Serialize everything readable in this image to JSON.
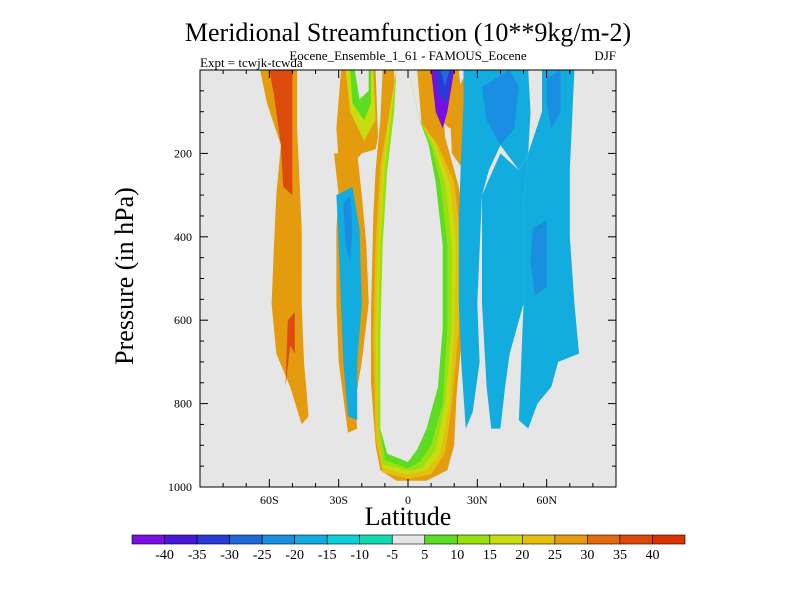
{
  "chart_data": {
    "type": "heatmap",
    "title": "Meridional Streamfunction (10**9kg/m-2)",
    "subtitle": "Eocene_Ensemble_1_61 - FAMOUS_Eocene",
    "expt_label": "Expt = tcwjk-tcwda",
    "season": "DJF",
    "xlabel": "Latitude",
    "ylabel": "Pressure (in hPa)",
    "xlim": [
      -90,
      90
    ],
    "ylim": [
      1000,
      0
    ],
    "x_ticks": [
      {
        "value": -60,
        "label": "60S"
      },
      {
        "value": -30,
        "label": "30S"
      },
      {
        "value": 0,
        "label": "0"
      },
      {
        "value": 30,
        "label": "30N"
      },
      {
        "value": 60,
        "label": "60N"
      }
    ],
    "y_ticks": [
      {
        "value": 200,
        "label": "200"
      },
      {
        "value": 400,
        "label": "400"
      },
      {
        "value": 600,
        "label": "600"
      },
      {
        "value": 800,
        "label": "800"
      },
      {
        "value": 1000,
        "label": "1000"
      }
    ],
    "background_color": "#e6e6e6",
    "colorbar": {
      "labels": [
        "-40",
        "-35",
        "-30",
        "-25",
        "-20",
        "-15",
        "-10",
        "-5",
        "5",
        "10",
        "15",
        "20",
        "25",
        "30",
        "35",
        "40"
      ],
      "colors": [
        "#7a0de0",
        "#4a16d8",
        "#2a3ad8",
        "#1f6ad8",
        "#1a8ee0",
        "#12acde",
        "#0ccfd8",
        "#10dcb0",
        "#e6e6e6",
        "#5cdc22",
        "#98e010",
        "#c8dc10",
        "#e4c00e",
        "#e49c0e",
        "#e06a0c",
        "#dc4a0c",
        "#dc3200"
      ]
    },
    "regions": [
      {
        "level": 5,
        "points": [
          [
            0,
            920
          ],
          [
            6,
            880
          ],
          [
            9,
            820
          ],
          [
            11,
            700
          ],
          [
            12,
            560
          ],
          [
            11,
            400
          ],
          [
            9,
            260
          ],
          [
            6,
            140
          ],
          [
            4,
            0
          ],
          [
            14,
            0
          ],
          [
            16,
            160
          ],
          [
            22,
            280
          ],
          [
            25,
            420
          ],
          [
            24,
            600
          ],
          [
            21,
            780
          ],
          [
            20,
            900
          ],
          [
            17,
            960
          ],
          [
            8,
            985
          ],
          [
            -5,
            985
          ],
          [
            -12,
            960
          ],
          [
            -14,
            900
          ],
          [
            -16,
            750
          ],
          [
            -16,
            580
          ],
          [
            -15,
            350
          ],
          [
            -14,
            240
          ],
          [
            -12,
            120
          ],
          [
            -11,
            0
          ],
          [
            -6,
            0
          ],
          [
            -5,
            160
          ],
          [
            -4,
            340
          ],
          [
            -3,
            560
          ],
          [
            -3,
            760
          ],
          [
            -2,
            880
          ]
        ]
      },
      {
        "level": 4,
        "points": [
          [
            -5,
            0
          ],
          [
            0,
            0
          ],
          [
            5,
            120
          ],
          [
            13,
            180
          ],
          [
            20,
            270
          ],
          [
            23,
            420
          ],
          [
            22,
            620
          ],
          [
            19,
            800
          ],
          [
            16,
            920
          ],
          [
            10,
            970
          ],
          [
            0,
            980
          ],
          [
            -11,
            965
          ],
          [
            -14,
            880
          ],
          [
            -15,
            640
          ],
          [
            -14,
            420
          ],
          [
            -12,
            230
          ],
          [
            -8,
            100
          ]
        ]
      },
      {
        "level": 3,
        "points": [
          [
            -5,
            0
          ],
          [
            0,
            0
          ],
          [
            5,
            120
          ],
          [
            12,
            180
          ],
          [
            18,
            270
          ],
          [
            21,
            420
          ],
          [
            20,
            620
          ],
          [
            18,
            800
          ],
          [
            14,
            920
          ],
          [
            8,
            960
          ],
          [
            0,
            970
          ],
          [
            -11,
            955
          ],
          [
            -13,
            860
          ],
          [
            -14,
            640
          ],
          [
            -13,
            420
          ],
          [
            -11,
            230
          ],
          [
            -8,
            100
          ]
        ]
      },
      {
        "level": 2,
        "points": [
          [
            -5,
            0
          ],
          [
            0,
            0
          ],
          [
            5,
            120
          ],
          [
            11,
            180
          ],
          [
            16,
            270
          ],
          [
            19,
            420
          ],
          [
            19,
            620
          ],
          [
            16,
            800
          ],
          [
            12,
            910
          ],
          [
            6,
            955
          ],
          [
            0,
            960
          ],
          [
            -11,
            945
          ],
          [
            -13,
            860
          ],
          [
            -13,
            640
          ],
          [
            -12,
            420
          ],
          [
            -10,
            230
          ],
          [
            -7,
            100
          ]
        ]
      },
      {
        "level": 1,
        "points": [
          [
            -5,
            0
          ],
          [
            0,
            0
          ],
          [
            5,
            120
          ],
          [
            10,
            180
          ],
          [
            14,
            270
          ],
          [
            17,
            420
          ],
          [
            17,
            620
          ],
          [
            15,
            800
          ],
          [
            10,
            900
          ],
          [
            5,
            940
          ],
          [
            0,
            955
          ],
          [
            -10,
            935
          ],
          [
            -12,
            860
          ],
          [
            -12,
            640
          ],
          [
            -11,
            420
          ],
          [
            -9,
            230
          ],
          [
            -6,
            100
          ]
        ]
      },
      {
        "level": 0,
        "points": [
          [
            -5,
            0
          ],
          [
            0,
            0
          ],
          [
            5,
            120
          ],
          [
            9,
            180
          ],
          [
            12,
            270
          ],
          [
            15,
            420
          ],
          [
            15,
            620
          ],
          [
            13,
            760
          ],
          [
            8,
            860
          ],
          [
            4,
            910
          ],
          [
            0,
            940
          ],
          [
            -9,
            920
          ],
          [
            -12,
            860
          ],
          [
            -12,
            640
          ],
          [
            -11,
            420
          ],
          [
            -9,
            240
          ],
          [
            -6,
            100
          ]
        ]
      },
      {
        "level": 5,
        "points": [
          [
            -29,
            0
          ],
          [
            -14,
            0
          ],
          [
            -13,
            160
          ],
          [
            -14,
            190
          ],
          [
            -20,
            200
          ],
          [
            -23,
            220
          ],
          [
            -24,
            240
          ],
          [
            -30,
            220
          ],
          [
            -31,
            140
          ]
        ]
      },
      {
        "level": 3,
        "points": [
          [
            -27,
            0
          ],
          [
            -15,
            0
          ],
          [
            -14,
            120
          ],
          [
            -19,
            170
          ],
          [
            -25,
            100
          ]
        ]
      },
      {
        "level": 1,
        "points": [
          [
            -25,
            0
          ],
          [
            -16,
            0
          ],
          [
            -16,
            80
          ],
          [
            -19,
            120
          ],
          [
            -24,
            80
          ]
        ]
      },
      {
        "level": 0,
        "points": [
          [
            -23,
            0
          ],
          [
            -17,
            0
          ],
          [
            -17,
            50
          ],
          [
            -21,
            70
          ]
        ]
      },
      {
        "level": 5,
        "points": [
          [
            -64,
            0
          ],
          [
            -48,
            0
          ],
          [
            -48,
            140
          ],
          [
            -46,
            380
          ],
          [
            -46,
            560
          ],
          [
            -45,
            700
          ],
          [
            -43,
            830
          ],
          [
            -46,
            850
          ],
          [
            -51,
            760
          ],
          [
            -57,
            680
          ],
          [
            -59,
            560
          ],
          [
            -58,
            420
          ],
          [
            -57,
            300
          ],
          [
            -55,
            180
          ],
          [
            -61,
            80
          ]
        ]
      },
      {
        "level": 7,
        "points": [
          [
            -60,
            0
          ],
          [
            -50,
            0
          ],
          [
            -50,
            140
          ],
          [
            -50,
            300
          ],
          [
            -54,
            280
          ],
          [
            -55,
            180
          ],
          [
            -58,
            60
          ]
        ]
      },
      {
        "level": 7,
        "points": [
          [
            -49,
            580
          ],
          [
            -52,
            600
          ],
          [
            -53,
            760
          ],
          [
            -51,
            660
          ],
          [
            -49,
            680
          ]
        ]
      },
      {
        "level": 5,
        "points": [
          [
            -32,
            200
          ],
          [
            -22,
            200
          ],
          [
            -20,
            300
          ],
          [
            -18,
            420
          ],
          [
            -17,
            560
          ],
          [
            -20,
            700
          ],
          [
            -23,
            800
          ],
          [
            -22,
            860
          ],
          [
            -26,
            870
          ],
          [
            -30,
            700
          ],
          [
            -31,
            560
          ],
          [
            -31,
            380
          ],
          [
            -30,
            300
          ]
        ]
      },
      {
        "level": -3,
        "points": [
          [
            -31,
            300
          ],
          [
            -24,
            280
          ],
          [
            -21,
            380
          ],
          [
            -20,
            560
          ],
          [
            -22,
            700
          ],
          [
            -22,
            840
          ],
          [
            -26,
            830
          ],
          [
            -28,
            700
          ],
          [
            -29,
            560
          ],
          [
            -30,
            420
          ]
        ]
      },
      {
        "level": -4,
        "points": [
          [
            -28,
            320
          ],
          [
            -25,
            300
          ],
          [
            -24,
            380
          ],
          [
            -25,
            460
          ],
          [
            -27,
            420
          ]
        ]
      },
      {
        "level": 5,
        "points": [
          [
            8,
            0
          ],
          [
            22,
            0
          ],
          [
            24,
            120
          ],
          [
            18,
            140
          ],
          [
            14,
            120
          ],
          [
            11,
            80
          ]
        ]
      },
      {
        "level": -8,
        "points": [
          [
            10,
            0
          ],
          [
            20,
            0
          ],
          [
            17,
            100
          ],
          [
            15,
            140
          ],
          [
            12,
            100
          ]
        ]
      },
      {
        "level": -6,
        "points": [
          [
            12,
            0
          ],
          [
            19,
            0
          ],
          [
            17,
            80
          ],
          [
            13,
            60
          ]
        ]
      },
      {
        "level": -5,
        "points": [
          [
            14,
            0
          ],
          [
            18,
            0
          ],
          [
            16,
            40
          ]
        ]
      },
      {
        "level": 5,
        "points": [
          [
            18,
            80
          ],
          [
            26,
            0
          ],
          [
            27,
            160
          ],
          [
            24,
            240
          ],
          [
            19,
            200
          ]
        ]
      },
      {
        "level": -3,
        "points": [
          [
            24,
            0
          ],
          [
            52,
            0
          ],
          [
            53,
            100
          ],
          [
            52,
            200
          ],
          [
            48,
            240
          ],
          [
            40,
            180
          ],
          [
            35,
            240
          ],
          [
            32,
            300
          ],
          [
            30,
            560
          ],
          [
            31,
            700
          ],
          [
            28,
            820
          ],
          [
            25,
            860
          ],
          [
            23,
            700
          ],
          [
            22,
            560
          ],
          [
            22,
            360
          ],
          [
            23,
            200
          ],
          [
            24,
            80
          ]
        ]
      },
      {
        "level": -3,
        "points": [
          [
            58,
            0
          ],
          [
            72,
            0
          ],
          [
            71,
            120
          ],
          [
            70,
            240
          ],
          [
            70,
            400
          ],
          [
            72,
            560
          ],
          [
            74,
            680
          ],
          [
            65,
            700
          ],
          [
            62,
            760
          ],
          [
            56,
            800
          ],
          [
            52,
            860
          ],
          [
            48,
            840
          ],
          [
            49,
            700
          ],
          [
            50,
            560
          ],
          [
            50,
            320
          ],
          [
            52,
            200
          ],
          [
            58,
            100
          ]
        ]
      },
      {
        "level": -3,
        "points": [
          [
            32,
            300
          ],
          [
            36,
            250
          ],
          [
            40,
            200
          ],
          [
            48,
            240
          ],
          [
            52,
            200
          ],
          [
            50,
            320
          ],
          [
            50,
            560
          ],
          [
            44,
            680
          ],
          [
            42,
            760
          ],
          [
            40,
            860
          ],
          [
            36,
            860
          ],
          [
            34,
            760
          ],
          [
            32,
            560
          ],
          [
            32,
            420
          ]
        ]
      },
      {
        "level": -4,
        "points": [
          [
            32,
            40
          ],
          [
            44,
            0
          ],
          [
            48,
            40
          ],
          [
            46,
            140
          ],
          [
            40,
            180
          ],
          [
            34,
            120
          ]
        ]
      },
      {
        "level": -4,
        "points": [
          [
            60,
            20
          ],
          [
            66,
            0
          ],
          [
            66,
            100
          ],
          [
            62,
            140
          ],
          [
            60,
            80
          ]
        ]
      },
      {
        "level": -4,
        "points": [
          [
            54,
            380
          ],
          [
            60,
            360
          ],
          [
            60,
            520
          ],
          [
            55,
            540
          ],
          [
            53,
            460
          ]
        ]
      }
    ]
  }
}
